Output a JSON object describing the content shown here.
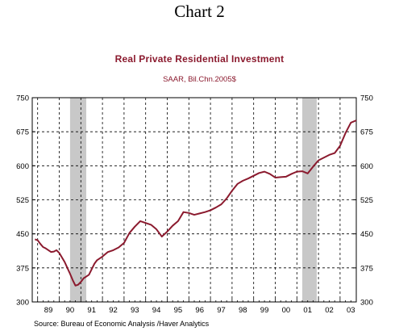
{
  "heading": "Chart 2",
  "source": "Source:  Bureau of Economic Analysis /Haver Analytics",
  "colors": {
    "line": "#8b1a2e",
    "recession": "#c8c8c8",
    "text": "#8b1a2e"
  },
  "chart_data": {
    "type": "line",
    "title": "Real Private Residential Investment",
    "subtitle": "SAAR, Bil.Chn.2005$",
    "xlabel": "",
    "ylabel": "",
    "ylim": [
      300,
      750
    ],
    "xlim": [
      1988.75,
      2003.75
    ],
    "yticks": [
      300,
      375,
      450,
      525,
      600,
      675,
      750
    ],
    "xtick_labels": [
      "89",
      "90",
      "91",
      "92",
      "93",
      "94",
      "95",
      "96",
      "97",
      "98",
      "99",
      "00",
      "01",
      "02",
      "03"
    ],
    "grid": true,
    "recessions": [
      [
        1990.5,
        1991.25
      ],
      [
        2001.25,
        2001.92
      ]
    ],
    "series": [
      {
        "x": [
          1988.875,
          1989.0,
          1989.125,
          1989.25,
          1989.375,
          1989.5,
          1989.625,
          1989.75,
          1989.875,
          1990.0,
          1990.125,
          1990.25,
          1990.375,
          1990.5,
          1990.625,
          1990.75,
          1990.875,
          1991.0,
          1991.125,
          1991.25,
          1991.375,
          1991.5,
          1991.625,
          1991.75,
          1992.0,
          1992.25,
          1992.5,
          1992.75,
          1993.0,
          1993.25,
          1993.5,
          1993.75,
          1994.0,
          1994.25,
          1994.5,
          1994.75,
          1995.0,
          1995.25,
          1995.5,
          1995.75,
          1996.0,
          1996.25,
          1996.5,
          1996.75,
          1997.0,
          1997.25,
          1997.5,
          1997.75,
          1998.0,
          1998.25,
          1998.5,
          1998.75,
          1999.0,
          1999.25,
          1999.5,
          1999.75,
          2000.0,
          2000.25,
          2000.5,
          2000.75,
          2001.0,
          2001.25,
          2001.5,
          2001.75,
          2002.0,
          2002.25,
          2002.5,
          2002.75,
          2003.0,
          2003.25,
          2003.5,
          2003.75
        ],
        "y": [
          438,
          436,
          428,
          421,
          418,
          414,
          410,
          411,
          414,
          408,
          398,
          388,
          375,
          362,
          348,
          336,
          338,
          344,
          352,
          356,
          360,
          372,
          384,
          392,
          400,
          410,
          414,
          420,
          430,
          452,
          466,
          478,
          474,
          470,
          460,
          444,
          455,
          468,
          478,
          498,
          496,
          492,
          495,
          498,
          502,
          508,
          515,
          528,
          545,
          560,
          567,
          572,
          578,
          584,
          587,
          582,
          574,
          575,
          576,
          582,
          587,
          588,
          583,
          598,
          612,
          618,
          624,
          628,
          644,
          672,
          695,
          700
        ]
      }
    ]
  }
}
